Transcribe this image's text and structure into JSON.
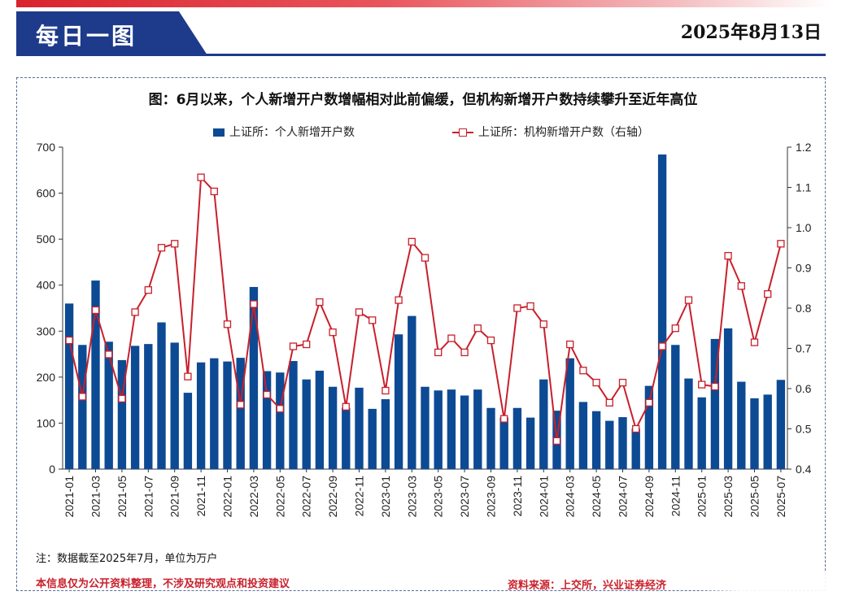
{
  "header": {
    "title": "每日一图",
    "date": "2025年8月13日",
    "brand_red": "#d9232d",
    "brand_blue": "#1e3a8a"
  },
  "note": "注：数据截至2025年7月，单位为万户",
  "disclaimer": "本信息仅为公开资料整理，不涉及研究观点和投资建议",
  "source": "资料来源：上交所，兴业证券经济",
  "chart_data": {
    "type": "bar",
    "title": "图：6月以来，个人新增开户数增幅相对此前偏缓，但机构新增开户数持续攀升至近年高位",
    "legend_placement": "top",
    "categories": [
      "2021-01",
      "2021-02",
      "2021-03",
      "2021-04",
      "2021-05",
      "2021-06",
      "2021-07",
      "2021-08",
      "2021-09",
      "2021-10",
      "2021-11",
      "2021-12",
      "2022-01",
      "2022-02",
      "2022-03",
      "2022-04",
      "2022-05",
      "2022-06",
      "2022-07",
      "2022-08",
      "2022-09",
      "2022-10",
      "2022-11",
      "2022-12",
      "2023-01",
      "2023-02",
      "2023-03",
      "2023-04",
      "2023-05",
      "2023-06",
      "2023-07",
      "2023-08",
      "2023-09",
      "2023-10",
      "2023-11",
      "2023-12",
      "2024-01",
      "2024-02",
      "2024-03",
      "2024-04",
      "2024-05",
      "2024-06",
      "2024-07",
      "2024-08",
      "2024-09",
      "2024-10",
      "2024-11",
      "2024-12",
      "2025-01",
      "2025-02",
      "2025-03",
      "2025-04",
      "2025-05",
      "2025-06",
      "2025-07"
    ],
    "tick_labels": [
      "2021-01",
      "2021-03",
      "2021-05",
      "2021-07",
      "2021-09",
      "2021-11",
      "2022-01",
      "2022-03",
      "2022-05",
      "2022-07",
      "2022-09",
      "2022-11",
      "2023-01",
      "2023-03",
      "2023-05",
      "2023-07",
      "2023-09",
      "2023-11",
      "2024-01",
      "2024-03",
      "2024-05",
      "2024-07",
      "2024-09",
      "2024-11",
      "2025-01",
      "2025-03",
      "2025-05",
      "2025-07"
    ],
    "series": [
      {
        "name": "上证所：个人新增开户数",
        "kind": "bar",
        "axis": "left",
        "color": "#0d4a94",
        "values": [
          360,
          270,
          410,
          277,
          237,
          268,
          272,
          319,
          275,
          166,
          232,
          241,
          234,
          242,
          396,
          213,
          210,
          235,
          195,
          214,
          179,
          133,
          177,
          131,
          152,
          293,
          333,
          179,
          171,
          173,
          160,
          173,
          133,
          112,
          133,
          112,
          195,
          127,
          241,
          146,
          126,
          105,
          113,
          88,
          181,
          684,
          270,
          197,
          156,
          283,
          306,
          190,
          154,
          162,
          194
        ]
      },
      {
        "name": "上证所：机构新增开户数（右轴）",
        "kind": "line",
        "axis": "right",
        "color": "#c8202b",
        "values": [
          0.72,
          0.58,
          0.795,
          0.685,
          0.575,
          0.79,
          0.845,
          0.95,
          0.96,
          0.63,
          1.125,
          1.09,
          0.76,
          0.56,
          0.81,
          0.585,
          0.55,
          0.705,
          0.71,
          0.815,
          0.74,
          0.555,
          0.79,
          0.77,
          0.595,
          0.82,
          0.965,
          0.925,
          0.69,
          0.725,
          0.69,
          0.75,
          0.72,
          0.525,
          0.8,
          0.805,
          0.76,
          0.47,
          0.71,
          0.645,
          0.615,
          0.565,
          0.615,
          0.5,
          0.565,
          0.705,
          0.75,
          0.82,
          0.61,
          0.605,
          0.93,
          0.855,
          0.715,
          0.835,
          0.96
        ]
      }
    ],
    "y_left": {
      "min": 0,
      "max": 700,
      "ticks": [
        0,
        100,
        200,
        300,
        400,
        500,
        600,
        700
      ]
    },
    "y_right": {
      "min": 0.4,
      "max": 1.2,
      "ticks": [
        "0.4",
        "0.5",
        "0.6",
        "0.7",
        "0.8",
        "0.9",
        "1.0",
        "1.1",
        "1.2"
      ]
    },
    "grid": false
  }
}
